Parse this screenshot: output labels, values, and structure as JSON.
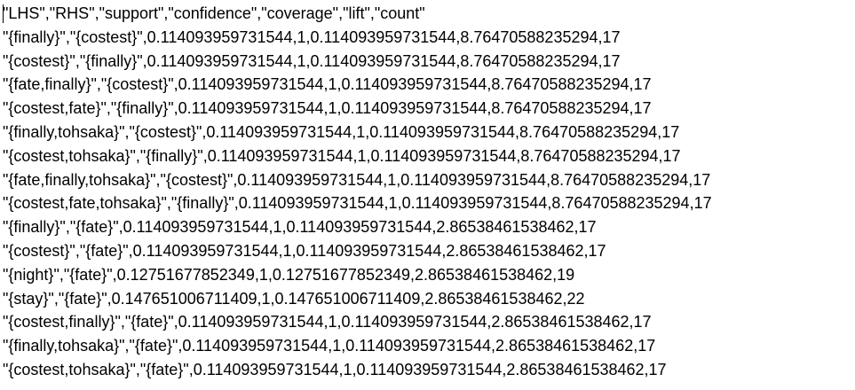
{
  "document": {
    "lines": [
      "\"LHS\",\"RHS\",\"support\",\"confidence\",\"coverage\",\"lift\",\"count\"",
      "\"{finally}\",\"{costest}\",0.114093959731544,1,0.114093959731544,8.76470588235294,17",
      "\"{costest}\",\"{finally}\",0.114093959731544,1,0.114093959731544,8.76470588235294,17",
      "\"{fate,finally}\",\"{costest}\",0.114093959731544,1,0.114093959731544,8.76470588235294,17",
      "\"{costest,fate}\",\"{finally}\",0.114093959731544,1,0.114093959731544,8.76470588235294,17",
      "\"{finally,tohsaka}\",\"{costest}\",0.114093959731544,1,0.114093959731544,8.76470588235294,17",
      "\"{costest,tohsaka}\",\"{finally}\",0.114093959731544,1,0.114093959731544,8.76470588235294,17",
      "\"{fate,finally,tohsaka}\",\"{costest}\",0.114093959731544,1,0.114093959731544,8.76470588235294,17",
      "\"{costest,fate,tohsaka}\",\"{finally}\",0.114093959731544,1,0.114093959731544,8.76470588235294,17",
      "\"{finally}\",\"{fate}\",0.114093959731544,1,0.114093959731544,2.86538461538462,17",
      "\"{costest}\",\"{fate}\",0.114093959731544,1,0.114093959731544,2.86538461538462,17",
      "\"{night}\",\"{fate}\",0.12751677852349,1,0.12751677852349,2.86538461538462,19",
      "\"{stay}\",\"{fate}\",0.147651006711409,1,0.147651006711409,2.86538461538462,22",
      "\"{costest,finally}\",\"{fate}\",0.114093959731544,1,0.114093959731544,2.86538461538462,17",
      "\"{finally,tohsaka}\",\"{fate}\",0.114093959731544,1,0.114093959731544,2.86538461538462,17",
      "\"{costest,tohsaka}\",\"{fate}\",0.114093959731544,1,0.114093959731544,2.86538461538462,17"
    ]
  }
}
